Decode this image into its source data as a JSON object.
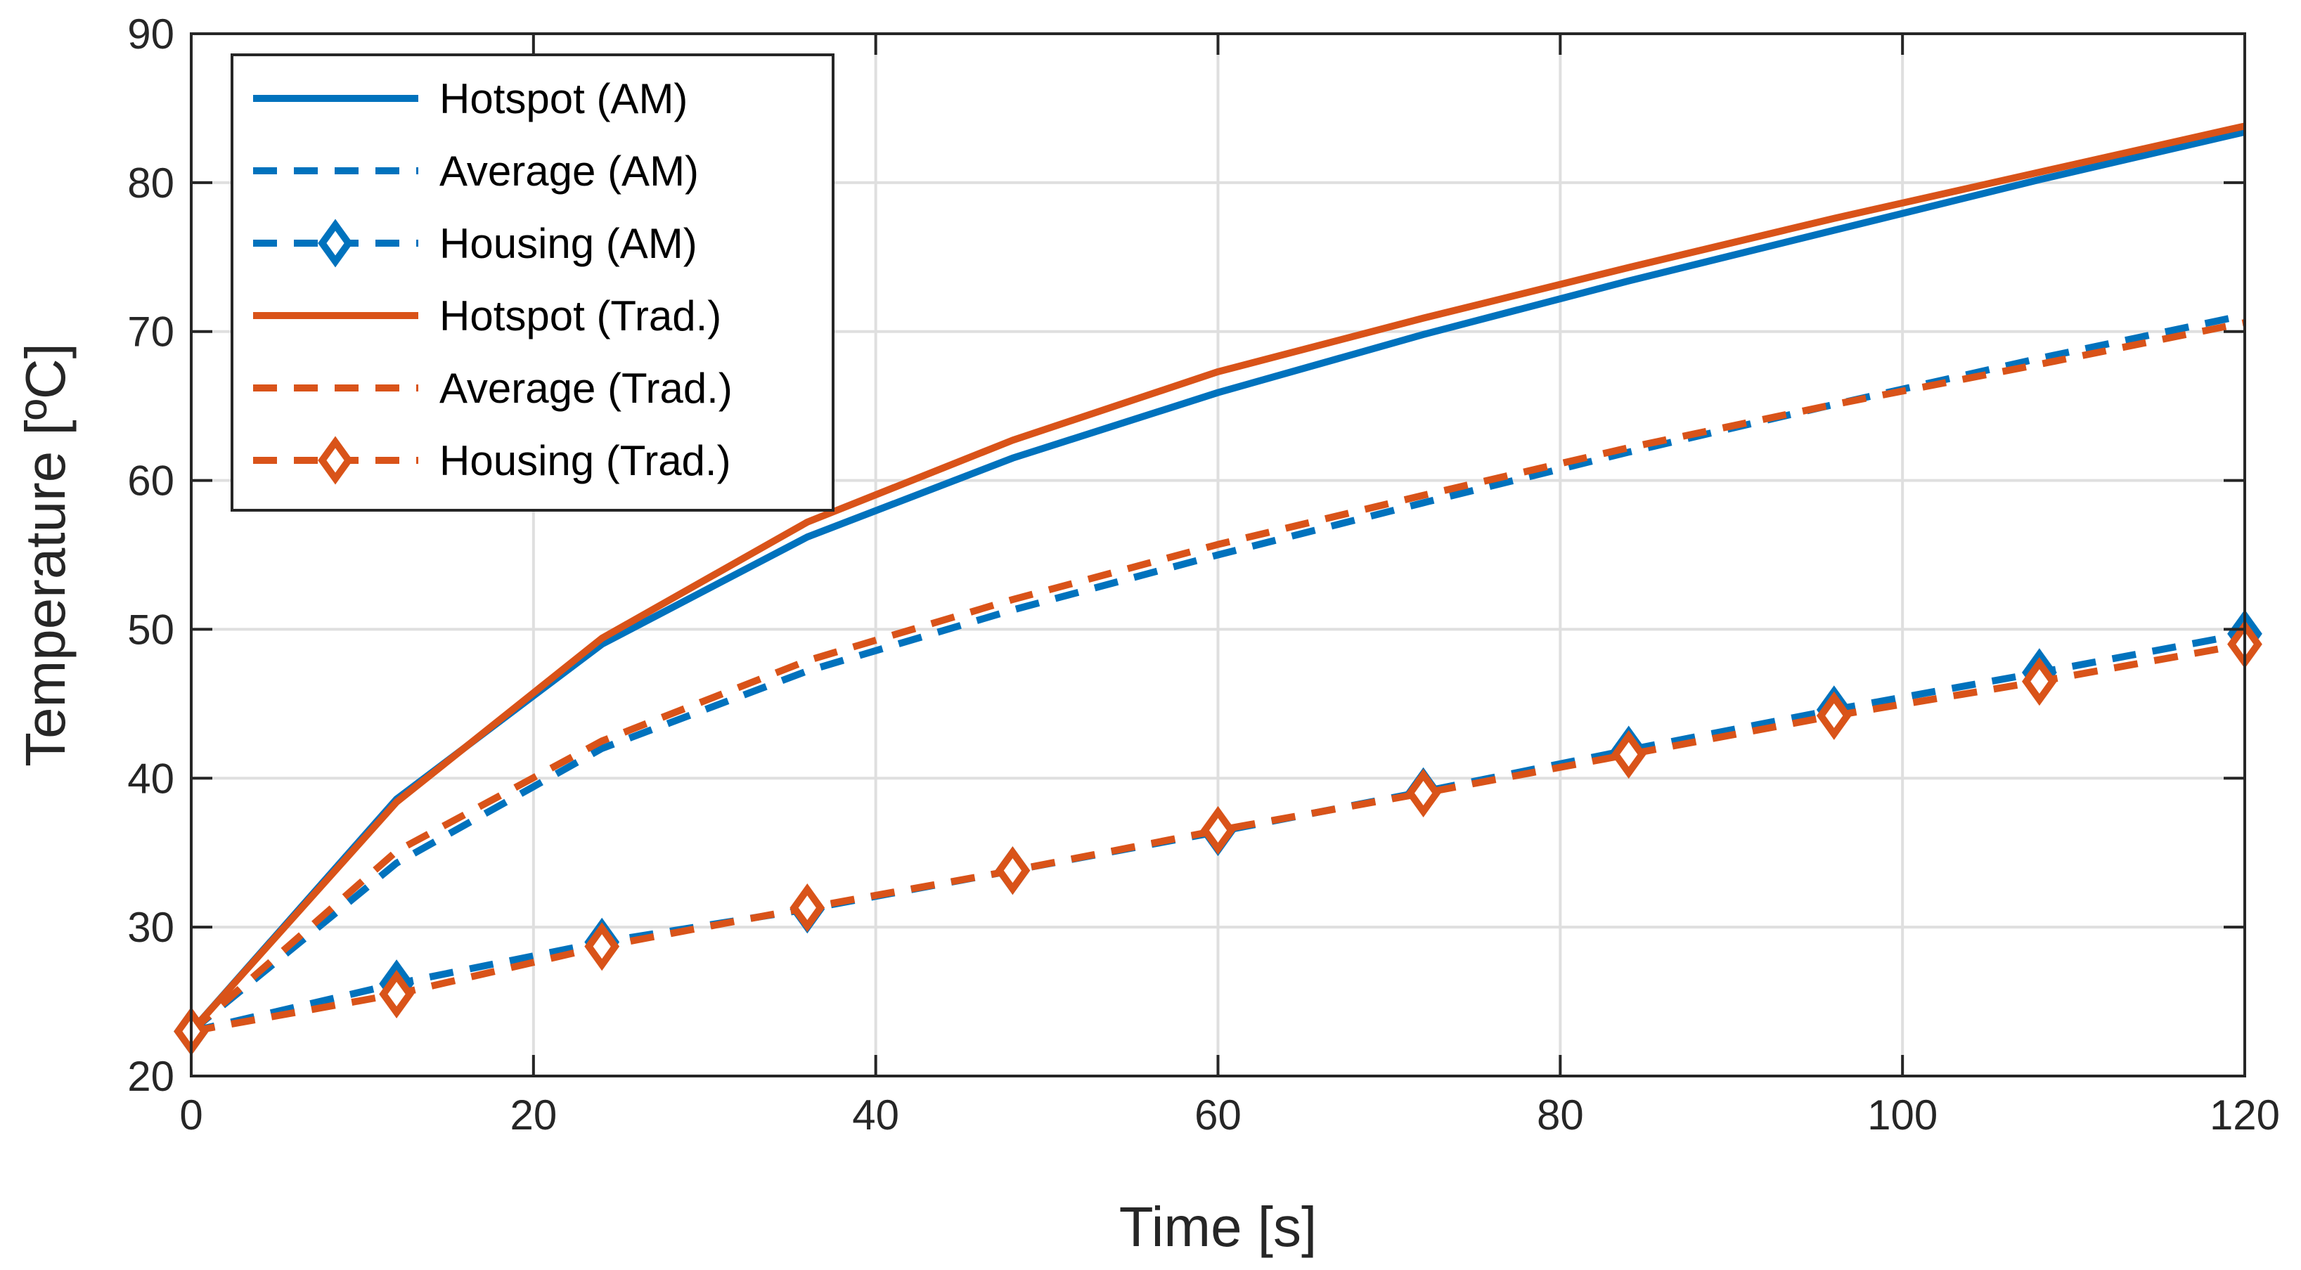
{
  "chart_data": {
    "type": "line",
    "xlabel": "Time [s]",
    "ylabel": "Temperature [ºC]",
    "xlim": [
      0,
      120
    ],
    "ylim": [
      20,
      90
    ],
    "xticks": [
      0,
      20,
      40,
      60,
      80,
      100,
      120
    ],
    "yticks": [
      20,
      30,
      40,
      50,
      60,
      70,
      80,
      90
    ],
    "xtick_labels": [
      "0",
      "20",
      "40",
      "60",
      "80",
      "100",
      "120"
    ],
    "ytick_labels": [
      "20",
      "30",
      "40",
      "50",
      "60",
      "70",
      "80",
      "90"
    ],
    "grid": true,
    "legend_position": "top-left",
    "x": [
      0,
      12,
      24,
      36,
      48,
      60,
      72,
      84,
      96,
      108,
      120
    ],
    "series": [
      {
        "name": "Hotspot (AM)",
        "color": "#0072BD",
        "style": "solid",
        "marker": "none",
        "values": [
          23,
          38.6,
          49.0,
          56.2,
          61.5,
          65.9,
          69.8,
          73.4,
          76.8,
          80.2,
          83.4
        ]
      },
      {
        "name": "Average (AM)",
        "color": "#0072BD",
        "style": "dashed",
        "marker": "none",
        "values": [
          23,
          34.3,
          42.0,
          47.2,
          51.3,
          55.0,
          58.5,
          61.9,
          65.1,
          68.2,
          71.1
        ]
      },
      {
        "name": "Housing (AM)",
        "color": "#0072BD",
        "style": "dashed",
        "marker": "diamond",
        "values": [
          23,
          26.2,
          29.0,
          31.2,
          33.8,
          36.4,
          39.1,
          41.9,
          44.6,
          47.1,
          49.7
        ]
      },
      {
        "name": "Hotspot (Trad.)",
        "color": "#D95319",
        "style": "solid",
        "marker": "none",
        "values": [
          23,
          38.4,
          49.4,
          57.2,
          62.7,
          67.3,
          70.9,
          74.3,
          77.6,
          80.7,
          83.8
        ]
      },
      {
        "name": "Average (Trad.)",
        "color": "#D95319",
        "style": "dashed",
        "marker": "none",
        "values": [
          23,
          35.1,
          42.5,
          47.9,
          52.0,
          55.7,
          59.0,
          62.2,
          65.1,
          67.8,
          70.6
        ]
      },
      {
        "name": "Housing (Trad.)",
        "color": "#D95319",
        "style": "dashed",
        "marker": "diamond",
        "values": [
          23,
          25.5,
          28.7,
          31.3,
          33.8,
          36.5,
          39.0,
          41.6,
          44.2,
          46.5,
          49.0
        ]
      }
    ]
  }
}
